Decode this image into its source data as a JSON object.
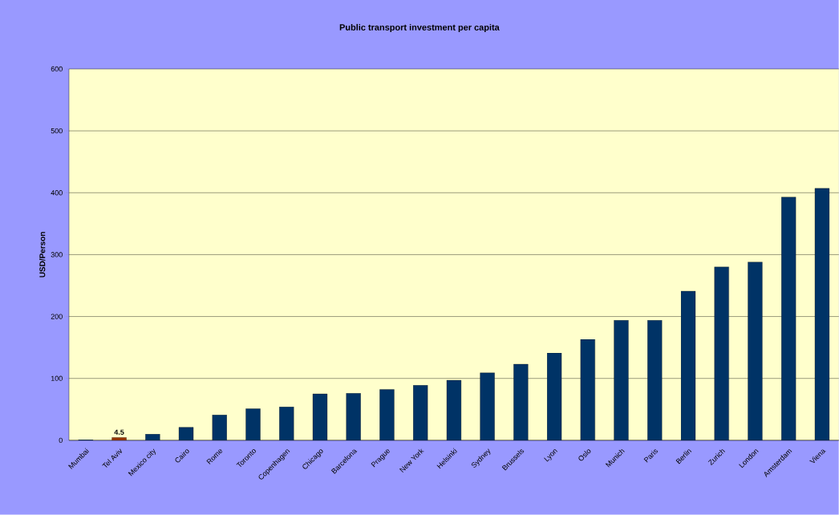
{
  "chart_data": {
    "type": "bar",
    "title": "Public transport investment per capita",
    "ylabel": "USD/Person",
    "categories": [
      "Mumbai",
      "Tel Aviv",
      "Mexico city",
      "Cairo",
      "Rome",
      "Toronto",
      "Copenhagen",
      "Chicago",
      "Barcelona",
      "Prague",
      "New York",
      "Helsinki",
      "Sydney",
      "Brussels",
      "Lyon",
      "Oslo",
      "Munich",
      "Paris",
      "Berlin",
      "Zurich",
      "London",
      "Amsterdam",
      "Viena"
    ],
    "values": [
      1,
      4.5,
      10,
      21,
      41,
      51,
      54,
      75,
      76,
      82,
      89,
      97,
      109,
      123,
      141,
      163,
      194,
      194,
      241,
      280,
      288,
      393,
      407
    ],
    "colors": [
      "#003366",
      "#993300",
      "#003366",
      "#003366",
      "#003366",
      "#003366",
      "#003366",
      "#003366",
      "#003366",
      "#003366",
      "#003366",
      "#003366",
      "#003366",
      "#003366",
      "#003366",
      "#003366",
      "#003366",
      "#003366",
      "#003366",
      "#003366",
      "#003366",
      "#003366",
      "#003366"
    ],
    "value_labels": [
      null,
      "4.5",
      null,
      null,
      null,
      null,
      null,
      null,
      null,
      null,
      null,
      null,
      null,
      null,
      null,
      null,
      null,
      null,
      null,
      null,
      null,
      null,
      null
    ],
    "ylim": [
      0,
      600
    ],
    "yticks": [
      0,
      100,
      200,
      300,
      400,
      500,
      600
    ],
    "grid": "y"
  }
}
